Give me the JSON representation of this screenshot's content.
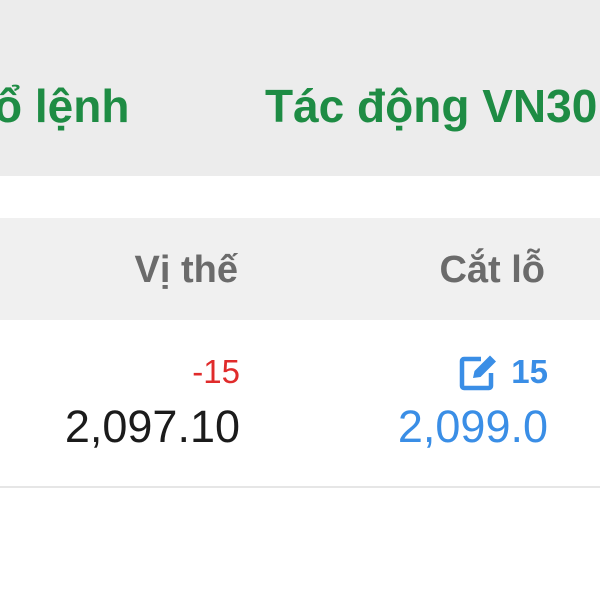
{
  "tabs": [
    {
      "label": "ổ lệnh"
    },
    {
      "label": "Tác động VN30"
    }
  ],
  "table": {
    "columns": [
      "Vị thế",
      "Cắt lỗ"
    ],
    "rows": [
      {
        "position_qty": "-15",
        "position_price": "2,097.10",
        "stoploss_qty": "15",
        "stoploss_price": "2,099.0",
        "stoploss_icon": "edit-icon"
      }
    ]
  },
  "colors": {
    "tab": "#1e8c44",
    "negative": "#e02b2b",
    "link": "#3a8ee6"
  }
}
